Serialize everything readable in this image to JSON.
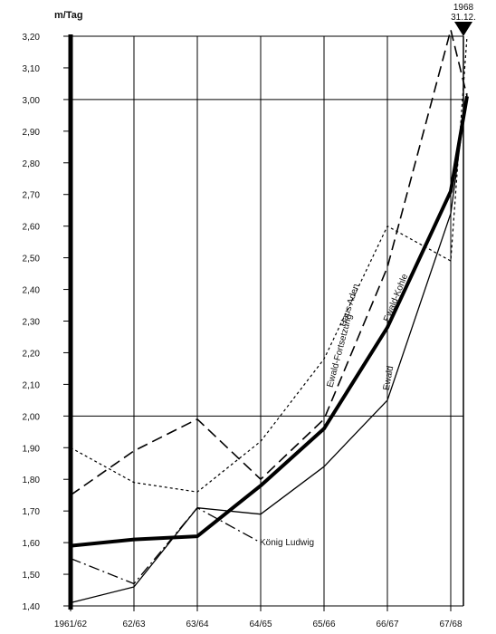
{
  "chart_data": {
    "type": "line",
    "ylabel": "m/Tag",
    "ylim": [
      1.4,
      3.2
    ],
    "y_ticks": [
      "1,40",
      "1,50",
      "1,60",
      "1,70",
      "1,80",
      "1,90",
      "2,00",
      "2,10",
      "2,20",
      "2,30",
      "2,40",
      "2,50",
      "2,60",
      "2,70",
      "2,80",
      "2,90",
      "3,00",
      "3,10",
      "3,20"
    ],
    "categories": [
      "1961/62",
      "62/63",
      "63/64",
      "64/65",
      "65/66",
      "66/67",
      "67/68"
    ],
    "final_marker": {
      "label_line1": "1968",
      "label_line2": "31.12."
    },
    "grid": true,
    "series": [
      {
        "name": "Ewald-Kohle",
        "style": "thick",
        "values": [
          1.59,
          1.61,
          1.62,
          1.78,
          1.96,
          2.28,
          2.71
        ],
        "final_value": 3.01
      },
      {
        "name": "Ewald",
        "style": "thin",
        "values": [
          1.41,
          1.46,
          1.71,
          1.69,
          1.84,
          2.05,
          2.64
        ],
        "final_value": 3.02
      },
      {
        "name": "Haus Aden",
        "style": "dotted",
        "values": [
          1.9,
          1.79,
          1.76,
          1.92,
          2.18,
          2.6,
          2.49
        ],
        "final_value": 3.2
      },
      {
        "name": "Ewald-Fortsetzung",
        "style": "dashed",
        "values": [
          1.75,
          1.89,
          1.99,
          1.8,
          1.99,
          2.47,
          3.22
        ],
        "final_value": 3.01
      },
      {
        "name": "König Ludwig",
        "style": "dashdot",
        "values": [
          1.55,
          1.47,
          1.71,
          1.6,
          null,
          null,
          null
        ],
        "final_value": null
      }
    ]
  }
}
